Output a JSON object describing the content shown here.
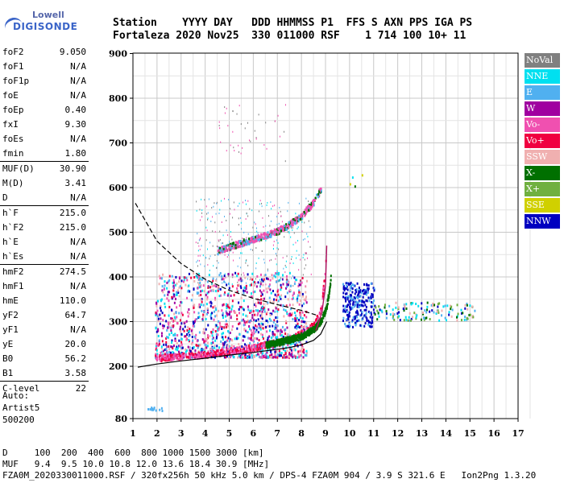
{
  "logo": {
    "line1": "Lowell",
    "line2": "DIGISONDE"
  },
  "header": {
    "line1": "Station    YYYY DAY   DDD HHMMSS P1  FFS S AXN PPS IGA PS",
    "line2": "Fortaleza 2020 Nov25  330 011000 RSF    1 714 100 10+ 11"
  },
  "params": {
    "group1": [
      {
        "label": "foF2",
        "value": "9.050"
      },
      {
        "label": "foF1",
        "value": "N/A"
      },
      {
        "label": "foF1p",
        "value": "N/A"
      },
      {
        "label": "foE",
        "value": "N/A"
      },
      {
        "label": "foEp",
        "value": "0.40"
      },
      {
        "label": "fxI",
        "value": "9.30"
      },
      {
        "label": "foEs",
        "value": "N/A"
      },
      {
        "label": "fmin",
        "value": "1.80"
      }
    ],
    "group2": [
      {
        "label": "MUF(D)",
        "value": "30.90"
      },
      {
        "label": "M(D)",
        "value": "3.41"
      },
      {
        "label": "D",
        "value": "N/A"
      }
    ],
    "group3": [
      {
        "label": "h`F",
        "value": "215.0"
      },
      {
        "label": "h`F2",
        "value": "215.0"
      },
      {
        "label": "h`E",
        "value": "N/A"
      },
      {
        "label": "h`Es",
        "value": "N/A"
      }
    ],
    "group4": [
      {
        "label": "hmF2",
        "value": "274.5"
      },
      {
        "label": "hmF1",
        "value": "N/A"
      },
      {
        "label": "hmE",
        "value": "110.0"
      },
      {
        "label": "yF2",
        "value": "64.7"
      },
      {
        "label": "yF1",
        "value": "N/A"
      },
      {
        "label": "yE",
        "value": "20.0"
      },
      {
        "label": "B0",
        "value": "56.2"
      },
      {
        "label": "B1",
        "value": "3.58"
      }
    ],
    "group5": [
      {
        "label": "C-level",
        "value": "22"
      }
    ]
  },
  "auto": [
    "Auto:",
    "Artist5",
    "500200"
  ],
  "legend": [
    {
      "label": "NoVal",
      "color": "#808080"
    },
    {
      "label": "NNE",
      "color": "#00e0f0"
    },
    {
      "label": "E",
      "color": "#50b0f0"
    },
    {
      "label": "W",
      "color": "#a000a0"
    },
    {
      "label": "Vo-",
      "color": "#f050b0"
    },
    {
      "label": "Vo+",
      "color": "#f00040"
    },
    {
      "label": "SSW",
      "color": "#f0b0b0"
    },
    {
      "label": "X-",
      "color": "#007000"
    },
    {
      "label": "X+",
      "color": "#70b040"
    },
    {
      "label": "SSE",
      "color": "#d0d000"
    },
    {
      "label": "NNW",
      "color": "#0000c0"
    }
  ],
  "footer": {
    "line1": "D     100  200  400  600  800 1000 1500 3000 [km]",
    "line2": "MUF   9.4  9.5 10.0 10.8 12.0 13.6 18.4 30.9 [MHz]",
    "line3": "FZA0M_2020330011000.RSF / 320fx256h 50 kHz 5.0 km / DPS-4 FZA0M 904 / 3.9 S 321.6 E   Ion2Png 1.3.20"
  },
  "chart_data": {
    "type": "scatter",
    "title": "",
    "xlabel": "",
    "ylabel": "",
    "xlim": [
      1,
      17
    ],
    "ylim": [
      80,
      900
    ],
    "xticks": [
      1,
      2,
      3,
      4,
      5,
      6,
      7,
      8,
      9,
      10,
      11,
      12,
      13,
      14,
      15,
      16,
      17
    ],
    "yticks": [
      80,
      200,
      300,
      400,
      500,
      600,
      700,
      800,
      900
    ],
    "y_scale": "nonlinear (virtual height, km)",
    "grid": true,
    "legend_position": "right",
    "series": [
      {
        "name": "Vo-",
        "x": [
          1.9,
          2.5,
          3.0,
          3.5,
          4.0,
          4.5,
          5.0,
          5.5,
          6.0,
          6.5,
          7.0,
          7.5,
          8.0,
          8.5,
          8.8,
          9.0
        ],
        "y": [
          220,
          222,
          224,
          226,
          228,
          232,
          236,
          240,
          244,
          250,
          256,
          264,
          275,
          295,
          330,
          440
        ]
      },
      {
        "name": "X-",
        "x": [
          6.5,
          7.0,
          7.5,
          8.0,
          8.5,
          8.8,
          9.0,
          9.1,
          9.2
        ],
        "y": [
          250,
          255,
          262,
          270,
          285,
          305,
          330,
          360,
          400
        ]
      },
      {
        "name": "Vo- 2nd hop",
        "x": [
          4.5,
          5.0,
          5.5,
          6.0,
          6.5,
          7.0,
          7.5,
          8.0,
          8.5,
          8.8
        ],
        "y": [
          460,
          470,
          478,
          486,
          495,
          505,
          520,
          540,
          570,
          600
        ]
      },
      {
        "name": "NNW",
        "x": [
          9.8,
          10.0,
          10.3,
          10.6,
          10.9
        ],
        "y": [
          330,
          360,
          310,
          350,
          300
        ]
      }
    ],
    "profile_line": {
      "x": [
        1.2,
        2.0,
        3.0,
        4.0,
        5.0,
        6.0,
        7.0,
        7.5,
        8.0,
        8.5,
        8.8,
        9.05
      ],
      "y": [
        198,
        205,
        212,
        218,
        225,
        231,
        238,
        242,
        248,
        258,
        272,
        300
      ]
    },
    "dashed_line": {
      "x": [
        1.1,
        2.0,
        3.0,
        4.0,
        5.0,
        6.0,
        7.0,
        8.0,
        8.6
      ],
      "y": [
        565,
        480,
        430,
        395,
        370,
        352,
        338,
        325,
        315
      ]
    }
  }
}
